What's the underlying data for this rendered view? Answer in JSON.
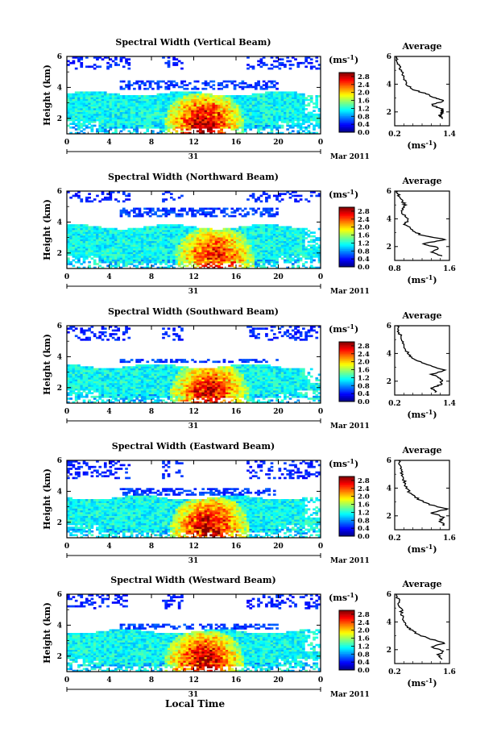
{
  "x_axis_title": "Local Time",
  "chart_data": [
    {
      "type": "heatmap",
      "title": "Spectral Width (Vertical Beam)",
      "ylabel": "Height (km)",
      "ylim": [
        1,
        6
      ],
      "yticks": [
        "2",
        "4",
        "6"
      ],
      "xlim": [
        0,
        24
      ],
      "xticks": [
        "0",
        "4",
        "8",
        "12",
        "16",
        "20",
        "0"
      ],
      "date_day": "31",
      "date_month": "Mar 2011",
      "colorbar": {
        "unit": "(ms",
        "unit_exp": "-1",
        "unit_close": ")",
        "ticks": [
          "2.8",
          "2.4",
          "2.0",
          "1.6",
          "1.2",
          "0.8",
          "0.4",
          "0.0"
        ],
        "range": [
          0,
          3.0
        ]
      },
      "average": {
        "title": "Average",
        "xlabel": "(ms",
        "xlabel_exp": "-1",
        "xlabel_close": ")",
        "xticks": [
          "0.2",
          "1.4"
        ],
        "xlim": [
          0.2,
          1.4
        ],
        "ylim": [
          1,
          6
        ],
        "yticks": [
          "2",
          "4",
          "6"
        ],
        "profile": [
          [
            1.25,
            1.5
          ],
          [
            1.18,
            1.75
          ],
          [
            1.25,
            2.0
          ],
          [
            1.22,
            2.25
          ],
          [
            1.0,
            2.5
          ],
          [
            1.3,
            2.8
          ],
          [
            1.1,
            3.0
          ],
          [
            0.9,
            3.3
          ],
          [
            0.6,
            3.6
          ],
          [
            0.45,
            4.0
          ],
          [
            0.4,
            4.5
          ],
          [
            0.35,
            5.0
          ],
          [
            0.3,
            5.4
          ],
          [
            0.25,
            5.8
          ],
          [
            0.22,
            6.0
          ]
        ]
      },
      "features": {
        "cloud_top_km": 3.6,
        "convective_peak": 2.8,
        "convective_center_h": 13,
        "upper_layer_km": [
          3.8,
          4.4
        ],
        "sparse_top_km": [
          5.2,
          6.0
        ]
      }
    },
    {
      "type": "heatmap",
      "title": "Spectral Width (Northward Beam)",
      "ylabel": "Height (km)",
      "ylim": [
        1,
        6
      ],
      "yticks": [
        "2",
        "4",
        "6"
      ],
      "xlim": [
        0,
        24
      ],
      "xticks": [
        "0",
        "4",
        "8",
        "12",
        "16",
        "20",
        "0"
      ],
      "date_day": "31",
      "date_month": "Mar 2011",
      "colorbar": {
        "unit": "(ms",
        "unit_exp": "-1",
        "unit_close": ")",
        "ticks": [
          "2.8",
          "2.4",
          "2.0",
          "1.6",
          "1.2",
          "0.8",
          "0.4",
          "0.0"
        ],
        "range": [
          0,
          3.0
        ]
      },
      "average": {
        "title": "Average",
        "xlabel": "(ms",
        "xlabel_exp": "-1",
        "xlabel_close": ")",
        "xticks": [
          "0.8",
          "1.6"
        ],
        "xlim": [
          0.8,
          1.6
        ],
        "ylim": [
          1,
          6
        ],
        "yticks": [
          "2",
          "4",
          "6"
        ],
        "profile": [
          [
            1.5,
            1.3
          ],
          [
            1.35,
            1.6
          ],
          [
            1.45,
            1.9
          ],
          [
            1.2,
            2.2
          ],
          [
            1.55,
            2.5
          ],
          [
            1.2,
            2.8
          ],
          [
            1.05,
            3.2
          ],
          [
            0.95,
            3.6
          ],
          [
            1.0,
            4.0
          ],
          [
            0.9,
            4.5
          ],
          [
            0.95,
            5.0
          ],
          [
            0.9,
            5.4
          ],
          [
            0.85,
            5.8
          ],
          [
            0.82,
            6.0
          ]
        ]
      },
      "features": {
        "cloud_top_km": 3.7,
        "convective_peak": 2.6,
        "convective_center_h": 14,
        "upper_layer_km": [
          4.3,
          4.9
        ],
        "sparse_top_km": [
          5.3,
          6.0
        ]
      }
    },
    {
      "type": "heatmap",
      "title": "Spectral Width (Southward Beam)",
      "ylabel": "Height (km)",
      "ylim": [
        1,
        6
      ],
      "yticks": [
        "2",
        "4",
        "6"
      ],
      "xlim": [
        0,
        24
      ],
      "xticks": [
        "0",
        "4",
        "8",
        "12",
        "16",
        "20",
        "0"
      ],
      "date_day": "31",
      "date_month": "Mar 2011",
      "colorbar": {
        "unit": "(ms",
        "unit_exp": "-1",
        "unit_close": ")",
        "ticks": [
          "2.8",
          "2.4",
          "2.0",
          "1.6",
          "1.2",
          "0.8",
          "0.4",
          "0.0"
        ],
        "range": [
          0,
          3.0
        ]
      },
      "average": {
        "title": "Average",
        "xlabel": "(ms",
        "xlabel_exp": "-1",
        "xlabel_close": ")",
        "xticks": [
          "0.2",
          "1.4"
        ],
        "xlim": [
          0.2,
          1.4
        ],
        "ylim": [
          1,
          6
        ],
        "yticks": [
          "2",
          "4",
          "6"
        ],
        "profile": [
          [
            1.1,
            1.2
          ],
          [
            1.0,
            1.5
          ],
          [
            1.25,
            1.8
          ],
          [
            1.2,
            2.2
          ],
          [
            1.0,
            2.5
          ],
          [
            1.3,
            2.8
          ],
          [
            0.9,
            3.2
          ],
          [
            0.6,
            3.6
          ],
          [
            0.5,
            4.0
          ],
          [
            0.4,
            4.5
          ],
          [
            0.35,
            5.0
          ],
          [
            0.3,
            5.5
          ],
          [
            0.25,
            6.0
          ]
        ]
      },
      "features": {
        "cloud_top_km": 3.4,
        "convective_peak": 2.7,
        "convective_center_h": 13.5,
        "upper_layer_km": [
          3.6,
          3.9
        ],
        "sparse_top_km": [
          5.0,
          6.0
        ]
      }
    },
    {
      "type": "heatmap",
      "title": "Spectral Width (Eastward Beam)",
      "ylabel": "Height (km)",
      "ylim": [
        1,
        6
      ],
      "yticks": [
        "2",
        "4",
        "6"
      ],
      "xlim": [
        0,
        24
      ],
      "xticks": [
        "0",
        "4",
        "8",
        "12",
        "16",
        "20",
        "0"
      ],
      "date_day": "31",
      "date_month": "Mar 2011",
      "colorbar": {
        "unit": "(ms",
        "unit_exp": "-1",
        "unit_close": ")",
        "ticks": [
          "2.8",
          "2.4",
          "2.0",
          "1.6",
          "1.2",
          "0.8",
          "0.4",
          "0.0"
        ],
        "range": [
          0,
          3.0
        ]
      },
      "average": {
        "title": "Average",
        "xlabel": "(ms",
        "xlabel_exp": "-1",
        "xlabel_close": ")",
        "xticks": [
          "0.2",
          "1.6"
        ],
        "xlim": [
          0.2,
          1.6
        ],
        "ylim": [
          1,
          6
        ],
        "yticks": [
          "2",
          "4",
          "6"
        ],
        "profile": [
          [
            1.5,
            1.3
          ],
          [
            1.35,
            1.6
          ],
          [
            1.45,
            1.9
          ],
          [
            1.15,
            2.2
          ],
          [
            1.55,
            2.5
          ],
          [
            1.1,
            2.8
          ],
          [
            0.8,
            3.2
          ],
          [
            0.6,
            3.6
          ],
          [
            0.5,
            4.0
          ],
          [
            0.45,
            4.5
          ],
          [
            0.4,
            5.0
          ],
          [
            0.35,
            5.5
          ],
          [
            0.3,
            6.0
          ]
        ]
      },
      "features": {
        "cloud_top_km": 3.6,
        "convective_peak": 2.8,
        "convective_center_h": 13.5,
        "upper_layer_km": [
          3.7,
          4.2
        ],
        "sparse_top_km": [
          4.8,
          6.0
        ]
      }
    },
    {
      "type": "heatmap",
      "title": "Spectral Width (Westward Beam)",
      "ylabel": "Height (km)",
      "ylim": [
        1,
        6
      ],
      "yticks": [
        "2",
        "4",
        "6"
      ],
      "xlim": [
        0,
        24
      ],
      "xticks": [
        "0",
        "4",
        "8",
        "12",
        "16",
        "20",
        "0"
      ],
      "date_day": "31",
      "date_month": "Mar 2011",
      "colorbar": {
        "unit": "(ms",
        "unit_exp": "-1",
        "unit_close": ")",
        "ticks": [
          "2.8",
          "2.4",
          "2.0",
          "1.6",
          "1.2",
          "0.8",
          "0.4",
          "0.0"
        ],
        "range": [
          0,
          3.0
        ]
      },
      "average": {
        "title": "Average",
        "xlabel": "(ms",
        "xlabel_exp": "-1",
        "xlabel_close": ")",
        "xticks": [
          "0.2",
          "1.6"
        ],
        "xlim": [
          0.2,
          1.6
        ],
        "ylim": [
          1,
          6
        ],
        "yticks": [
          "2",
          "4",
          "6"
        ],
        "profile": [
          [
            1.45,
            1.3
          ],
          [
            1.3,
            1.6
          ],
          [
            1.45,
            1.9
          ],
          [
            1.15,
            2.2
          ],
          [
            1.5,
            2.5
          ],
          [
            1.05,
            2.8
          ],
          [
            0.75,
            3.2
          ],
          [
            0.55,
            3.6
          ],
          [
            0.45,
            4.0
          ],
          [
            0.4,
            4.5
          ],
          [
            0.35,
            5.0
          ],
          [
            0.3,
            5.5
          ],
          [
            0.25,
            6.0
          ]
        ]
      },
      "features": {
        "cloud_top_km": 3.6,
        "convective_peak": 2.8,
        "convective_center_h": 13,
        "upper_layer_km": [
          3.7,
          4.1
        ],
        "sparse_top_km": [
          5.0,
          6.0
        ]
      }
    }
  ]
}
